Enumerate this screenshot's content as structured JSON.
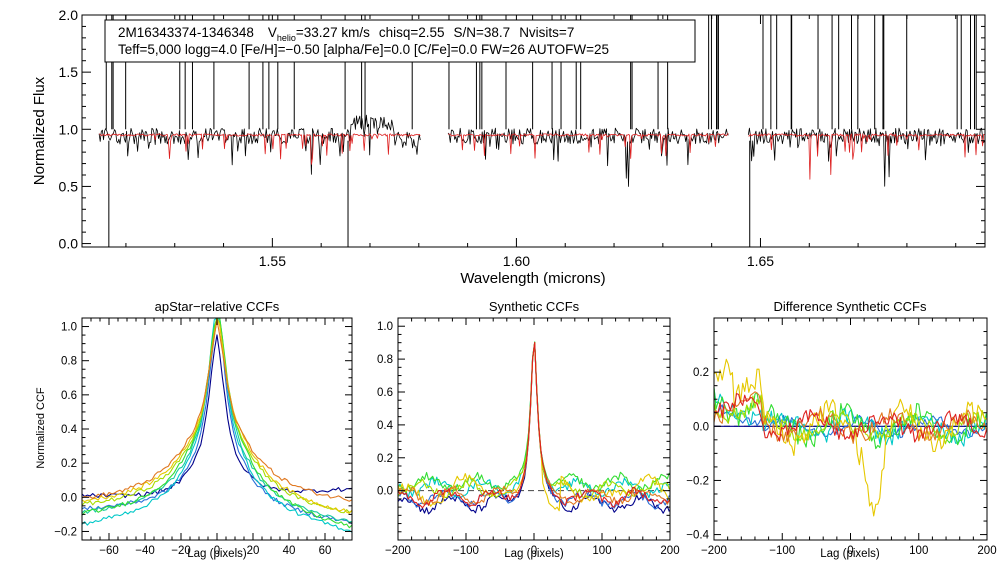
{
  "chart_data": [
    {
      "type": "line",
      "name": "spectrum",
      "title": "",
      "xlabel": "Wavelength (microns)",
      "ylabel": "Normalized Flux",
      "xlim": [
        1.511,
        1.696
      ],
      "ylim": [
        -0.03,
        2.0
      ],
      "xticks": [
        "1.55",
        "1.60",
        "1.65"
      ],
      "yticks": [
        "0.0",
        "0.5",
        "1.0",
        "1.5",
        "2.0"
      ],
      "annotation": {
        "star_id": "2M16343374-1346348",
        "vhelio_prefix": "V",
        "vhelio_sub": "helio",
        "vhelio_rest": "=33.27 km/s",
        "chisq": "chisq=2.55",
        "snr": "S/N=38.7",
        "nvisits": "Nvisits=7",
        "line2": "Teff=5,000 logg=4.0 [Fe/H]=−0.50 [alpha/Fe]=0.0 [C/Fe]=0.0 FW=26 AUTOFW=25"
      },
      "chip_ranges": [
        [
          1.5145,
          1.5805
        ],
        [
          1.586,
          1.6435
        ],
        [
          1.6475,
          1.696
        ]
      ],
      "series": [
        {
          "name": "observed",
          "color": "#000000",
          "level": 0.94
        },
        {
          "name": "synthetic",
          "color": "#dd1f1f",
          "level": 0.95
        }
      ]
    },
    {
      "type": "line",
      "name": "apstar-relative",
      "title": "apStar−relative CCFs",
      "xlabel": "Lag (pixels)",
      "ylabel": "Normalized CCF",
      "xlim": [
        -75,
        75
      ],
      "ylim": [
        -0.25,
        1.05
      ],
      "xticks": [
        "−60",
        "−40",
        "−20",
        "0",
        "20",
        "40",
        "60"
      ],
      "yticks": [
        "−0.2",
        "0.0",
        "0.2",
        "0.4",
        "0.6",
        "0.8",
        "1.0"
      ],
      "series": [
        {
          "color": "#00008b",
          "left": 0.01,
          "right": 0.05
        },
        {
          "color": "#2a6fd8",
          "left": -0.07,
          "right": -0.15
        },
        {
          "color": "#00c8c8",
          "left": -0.16,
          "right": -0.2
        },
        {
          "color": "#19c9a0",
          "left": -0.09,
          "right": -0.15
        },
        {
          "color": "#33dd33",
          "left": -0.1,
          "right": -0.18
        },
        {
          "color": "#a8dd00",
          "left": -0.05,
          "right": -0.1
        },
        {
          "color": "#e6c800",
          "left": -0.03,
          "right": -0.1
        },
        {
          "color": "#e07820",
          "left": -0.02,
          "right": -0.03
        }
      ]
    },
    {
      "type": "line",
      "name": "synthetic",
      "title": "Synthetic CCFs",
      "xlabel": "Lag (pixels)",
      "ylabel": "",
      "xlim": [
        -200,
        200
      ],
      "ylim": [
        -0.3,
        1.05
      ],
      "xticks": [
        "−200",
        "−100",
        "0",
        "100",
        "200"
      ],
      "yticks": [
        "0.0",
        "0.2",
        "0.4",
        "0.6",
        "0.8",
        "1.0"
      ],
      "reference_line": 0.0,
      "series": [
        {
          "color": "#00008b",
          "offset": -0.08
        },
        {
          "color": "#2a6fd8",
          "offset": -0.05
        },
        {
          "color": "#00c8c8",
          "offset": 0.02
        },
        {
          "color": "#33dd33",
          "offset": 0.05
        },
        {
          "color": "#a8dd00",
          "offset": 0.01
        },
        {
          "color": "#e6c800",
          "offset": 0.0
        },
        {
          "color": "#e07820",
          "offset": -0.03
        },
        {
          "color": "#dd2020",
          "offset": -0.04
        }
      ]
    },
    {
      "type": "line",
      "name": "difference",
      "title": "Difference Synthetic CCFs",
      "xlabel": "Lag (pixels)",
      "ylabel": "",
      "xlim": [
        -200,
        200
      ],
      "ylim": [
        -0.42,
        0.4
      ],
      "xticks": [
        "−200",
        "−100",
        "0",
        "100",
        "200"
      ],
      "yticks": [
        "−0.4",
        "−0.2",
        "0.0",
        "0.2"
      ],
      "reference_line": 0.0,
      "series": [
        {
          "color": "#00008b",
          "amp": 0.0
        },
        {
          "color": "#2a6fd8",
          "amp": 0.04
        },
        {
          "color": "#00c8c8",
          "amp": 0.07
        },
        {
          "color": "#33dd33",
          "amp": 0.08
        },
        {
          "color": "#a8dd00",
          "amp": 0.06
        },
        {
          "color": "#e6c800",
          "amp": 0.1
        },
        {
          "color": "#e07820",
          "amp": 0.06
        },
        {
          "color": "#dd2020",
          "amp": 0.06
        }
      ]
    }
  ]
}
